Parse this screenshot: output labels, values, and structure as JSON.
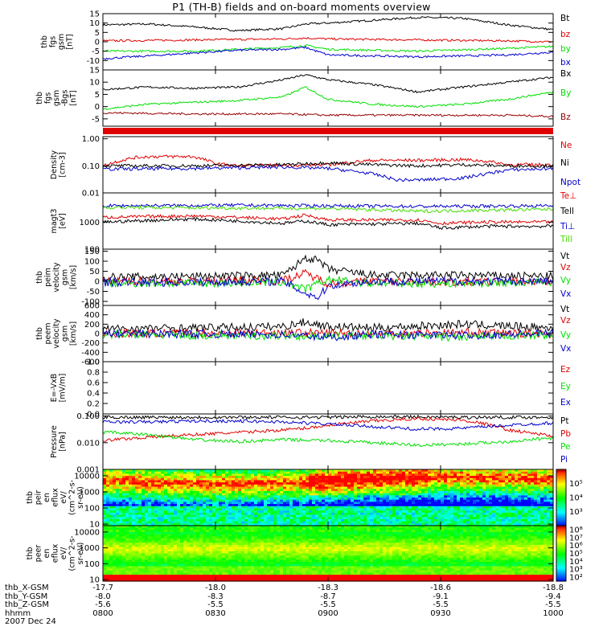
{
  "title": "P1 (TH-B) fields and on-board moments overview",
  "colors": {
    "black": "#000000",
    "red": "#e00000",
    "green": "#00e000",
    "blue": "#0000cc",
    "darkred": "#990000",
    "lime": "#44dd00"
  },
  "chart_data": [
    {
      "id": "p1",
      "type": "line",
      "ylabel": [
        "thb",
        "fgs",
        "gsm",
        "[nT]"
      ],
      "ylim": [
        -15,
        15
      ],
      "ylog": false,
      "yticks": [
        -10,
        -5,
        0,
        5,
        10,
        15
      ],
      "series": [
        {
          "name": "Bt",
          "color": "#000000",
          "x": [
            0,
            0.1,
            0.2,
            0.3,
            0.4,
            0.45,
            0.5,
            0.6,
            0.7,
            0.8,
            0.9,
            1
          ],
          "y": [
            9,
            9.5,
            8,
            6,
            7,
            9.5,
            10,
            11.5,
            13,
            12.5,
            9,
            6.5
          ]
        },
        {
          "name": "bz",
          "color": "#e00000",
          "x": [
            0,
            0.2,
            0.4,
            0.45,
            0.5,
            0.7,
            0.9,
            1
          ],
          "y": [
            0.5,
            1,
            1.5,
            2,
            1.5,
            1,
            0.5,
            0
          ]
        },
        {
          "name": "by",
          "color": "#00e000",
          "x": [
            0,
            0.2,
            0.4,
            0.45,
            0.5,
            0.7,
            0.9,
            1
          ],
          "y": [
            -5,
            -5,
            -3,
            -2,
            -4,
            -5,
            -3.5,
            -2.5
          ]
        },
        {
          "name": "bx",
          "color": "#0000cc",
          "x": [
            0,
            0.1,
            0.3,
            0.4,
            0.45,
            0.5,
            0.7,
            0.9,
            1
          ],
          "y": [
            -9,
            -7.5,
            -4.5,
            -4,
            -3,
            -7,
            -8,
            -7,
            -5.5
          ]
        }
      ]
    },
    {
      "id": "p2",
      "type": "line",
      "ylabel": [
        "thb",
        "fgs",
        "gsm",
        "-Bgs",
        "[nT]"
      ],
      "ylim": [
        -8,
        15
      ],
      "ylog": false,
      "yticks": [
        -5,
        0,
        5,
        10,
        15
      ],
      "series": [
        {
          "name": "Bx",
          "color": "#000000",
          "x": [
            0,
            0.1,
            0.2,
            0.3,
            0.4,
            0.45,
            0.5,
            0.6,
            0.7,
            0.8,
            0.9,
            1
          ],
          "y": [
            7,
            8,
            7.5,
            8,
            11,
            13,
            11,
            9,
            6,
            8,
            10,
            12
          ]
        },
        {
          "name": "By",
          "color": "#00e000",
          "x": [
            0,
            0.1,
            0.3,
            0.4,
            0.45,
            0.5,
            0.6,
            0.7,
            0.8,
            0.9,
            1
          ],
          "y": [
            -1,
            1,
            2.5,
            4,
            8,
            3,
            1,
            0,
            1,
            3,
            6
          ]
        },
        {
          "name": "Bz",
          "color": "#990000",
          "x": [
            0,
            0.2,
            0.4,
            0.5,
            0.7,
            0.9,
            1
          ],
          "y": [
            -2.5,
            -3,
            -3,
            -3.5,
            -3.5,
            -3.5,
            -4
          ]
        }
      ]
    },
    {
      "id": "p3",
      "type": "line",
      "ylabel": [
        "Density",
        "[cm-3]"
      ],
      "ylim": [
        0.01,
        1.2
      ],
      "ylog": true,
      "yticks": [
        0.01,
        0.1,
        1
      ],
      "yticklabels": [
        "0.01",
        "0.10",
        "1.00"
      ],
      "series": [
        {
          "name": "Ne",
          "color": "#e00000",
          "x": [
            0,
            0.07,
            0.1,
            0.2,
            0.25,
            0.3,
            0.5,
            0.6,
            0.7,
            0.8,
            0.85,
            0.9,
            1
          ],
          "y": [
            0.1,
            0.2,
            0.22,
            0.22,
            0.12,
            0.1,
            0.11,
            0.16,
            0.16,
            0.17,
            0.15,
            0.11,
            0.11
          ]
        },
        {
          "name": "Ni",
          "color": "#000000",
          "x": [
            0,
            0.2,
            0.4,
            0.5,
            0.6,
            0.7,
            0.8,
            0.9,
            1
          ],
          "y": [
            0.1,
            0.1,
            0.11,
            0.13,
            0.11,
            0.1,
            0.11,
            0.1,
            0.1
          ]
        },
        {
          "name": "Npot",
          "color": "#0000cc",
          "x": [
            0,
            0.2,
            0.4,
            0.5,
            0.6,
            0.65,
            0.7,
            0.8,
            0.85,
            0.9,
            1
          ],
          "y": [
            0.075,
            0.08,
            0.09,
            0.08,
            0.05,
            0.03,
            0.03,
            0.035,
            0.05,
            0.07,
            0.08
          ]
        }
      ]
    },
    {
      "id": "p4",
      "type": "line",
      "ylabel": [
        "magt3",
        "[eV]"
      ],
      "ylim": [
        100,
        12000
      ],
      "ylog": true,
      "yticks": [
        100,
        1000
      ],
      "yticklabels": [
        "100",
        "1000"
      ],
      "series": [
        {
          "name": "Te⊥",
          "color": "#e00000",
          "x": [
            0,
            0.2,
            0.4,
            0.45,
            0.5,
            0.7,
            0.75,
            0.85,
            1
          ],
          "y": [
            1500,
            1700,
            1300,
            1800,
            1200,
            1200,
            900,
            1000,
            1000
          ]
        },
        {
          "name": "Tell",
          "color": "#000000",
          "x": [
            0,
            0.2,
            0.4,
            0.45,
            0.5,
            0.7,
            0.75,
            0.85,
            1
          ],
          "y": [
            1000,
            1300,
            900,
            1100,
            800,
            900,
            600,
            700,
            700
          ]
        },
        {
          "name": "Ti⊥",
          "color": "#0000cc",
          "x": [
            0,
            0.3,
            0.5,
            0.7,
            1
          ],
          "y": [
            4000,
            4200,
            4000,
            3800,
            4000
          ]
        },
        {
          "name": "Till",
          "color": "#44dd00",
          "x": [
            0,
            0.3,
            0.5,
            0.7,
            1
          ],
          "y": [
            3500,
            3300,
            3200,
            2500,
            3000
          ]
        }
      ]
    },
    {
      "id": "p5",
      "type": "line",
      "ylabel": [
        "thb",
        "peim",
        "velocity",
        "gsm",
        "[km/s]"
      ],
      "ylim": [
        -120,
        160
      ],
      "ylog": false,
      "yticks": [
        -100,
        -50,
        0,
        50,
        100,
        150
      ],
      "series": [
        {
          "name": "Vt",
          "color": "#000000",
          "x": [
            0,
            0.2,
            0.4,
            0.43,
            0.45,
            0.48,
            0.5,
            0.6,
            0.8,
            1
          ],
          "y": [
            20,
            25,
            30,
            80,
            120,
            100,
            60,
            30,
            30,
            25
          ]
        },
        {
          "name": "Vz",
          "color": "#e00000",
          "x": [
            0,
            0.2,
            0.4,
            0.45,
            0.5,
            0.6,
            0.8,
            1
          ],
          "y": [
            0,
            0,
            5,
            40,
            -10,
            0,
            -5,
            0
          ]
        },
        {
          "name": "Vy",
          "color": "#00e000",
          "x": [
            0,
            0.2,
            0.4,
            0.45,
            0.5,
            0.6,
            0.8,
            1
          ],
          "y": [
            -10,
            -10,
            -5,
            -40,
            10,
            -10,
            -10,
            -5
          ]
        },
        {
          "name": "Vx",
          "color": "#0000cc",
          "x": [
            0,
            0.2,
            0.4,
            0.45,
            0.48,
            0.5,
            0.6,
            0.8,
            1
          ],
          "y": [
            -5,
            -5,
            0,
            -60,
            -80,
            -20,
            0,
            0,
            0
          ]
        }
      ]
    },
    {
      "id": "p6",
      "type": "line",
      "ylabel": [
        "thb",
        "peem",
        "velocity",
        "gsm",
        "[km/s]"
      ],
      "ylim": [
        -600,
        600
      ],
      "ylog": false,
      "yticks": [
        -600,
        -400,
        -200,
        0,
        200,
        400,
        600
      ],
      "series": [
        {
          "name": "Vt",
          "color": "#000000",
          "x": [
            0,
            0.2,
            0.4,
            0.45,
            0.5,
            0.6,
            0.8,
            0.85,
            1
          ],
          "y": [
            100,
            120,
            150,
            250,
            150,
            120,
            200,
            180,
            120
          ]
        },
        {
          "name": "Vz",
          "color": "#e00000",
          "x": [
            0,
            0.2,
            0.4,
            0.5,
            0.6,
            0.8,
            1
          ],
          "y": [
            0,
            10,
            20,
            10,
            0,
            20,
            0
          ]
        },
        {
          "name": "Vy",
          "color": "#00e000",
          "x": [
            0,
            0.2,
            0.4,
            0.5,
            0.6,
            0.8,
            1
          ],
          "y": [
            -20,
            -40,
            -50,
            -60,
            -40,
            -80,
            -20
          ]
        },
        {
          "name": "Vx",
          "color": "#0000cc",
          "x": [
            0,
            0.2,
            0.4,
            0.5,
            0.6,
            0.8,
            1
          ],
          "y": [
            0,
            -10,
            -20,
            -80,
            -20,
            -40,
            0
          ]
        }
      ]
    },
    {
      "id": "p7",
      "type": "line",
      "ylabel": [
        "E=-VxB",
        "[mV/m]"
      ],
      "ylim": [
        0,
        1
      ],
      "ylog": false,
      "yticks": [
        0,
        0.2,
        0.4,
        0.6,
        0.8,
        1
      ],
      "yticklabels": [
        "0.0",
        "0.2",
        "0.4",
        "0.6",
        "0.8",
        "1.0"
      ],
      "series": [
        {
          "name": "Ez",
          "color": "#e00000",
          "x": [],
          "y": []
        },
        {
          "name": "Ey",
          "color": "#00e000",
          "x": [],
          "y": []
        },
        {
          "name": "Ex",
          "color": "#0000cc",
          "x": [],
          "y": []
        }
      ]
    },
    {
      "id": "p8",
      "type": "line",
      "ylabel": [
        "Pressure",
        "[nPa]"
      ],
      "ylim": [
        0.001,
        0.12
      ],
      "ylog": true,
      "yticks": [
        0.001,
        0.01,
        0.1
      ],
      "yticklabels": [
        "0.001",
        "0.010",
        "0.100"
      ],
      "series": [
        {
          "name": "Pt",
          "color": "#000000",
          "x": [
            0,
            0.2,
            0.4,
            0.5,
            0.6,
            0.8,
            1
          ],
          "y": [
            0.09,
            0.09,
            0.09,
            0.09,
            0.095,
            0.09,
            0.09
          ]
        },
        {
          "name": "Pb",
          "color": "#e00000",
          "x": [
            0,
            0.1,
            0.2,
            0.3,
            0.4,
            0.45,
            0.5,
            0.6,
            0.7,
            0.8,
            0.9,
            1
          ],
          "y": [
            0.012,
            0.016,
            0.02,
            0.024,
            0.03,
            0.035,
            0.045,
            0.065,
            0.08,
            0.07,
            0.03,
            0.017
          ]
        },
        {
          "name": "Pe",
          "color": "#00e000",
          "x": [
            0,
            0.1,
            0.2,
            0.3,
            0.4,
            0.5,
            0.6,
            0.7,
            0.8,
            0.9,
            1
          ],
          "y": [
            0.025,
            0.02,
            0.013,
            0.011,
            0.013,
            0.012,
            0.01,
            0.008,
            0.009,
            0.011,
            0.015
          ]
        },
        {
          "name": "Pi",
          "color": "#0000cc",
          "x": [
            0,
            0.1,
            0.2,
            0.3,
            0.4,
            0.5,
            0.6,
            0.7,
            0.8,
            0.9,
            1
          ],
          "y": [
            0.06,
            0.06,
            0.065,
            0.065,
            0.06,
            0.05,
            0.04,
            0.032,
            0.035,
            0.045,
            0.055
          ]
        }
      ]
    },
    {
      "id": "p9",
      "type": "heatmap",
      "ylabel": [
        "thb",
        "peir",
        "en",
        "eflux",
        "eV/",
        "(cm^2-s-",
        "sr-eV)"
      ],
      "ylim": [
        8,
        25000
      ],
      "ylog": true,
      "yticks": [
        10,
        100,
        1000,
        10000
      ],
      "yticklabels": [
        "10",
        "100",
        "1000",
        "10000"
      ],
      "colorbar": {
        "ticks": [
          "10^3",
          "10^4",
          "10^5"
        ]
      }
    },
    {
      "id": "p10",
      "type": "heatmap",
      "ylabel": [
        "thb",
        "peer",
        "en",
        "eflux",
        "eV/",
        "(cm^2-s-",
        "sr-eV)"
      ],
      "ylim": [
        8,
        25000
      ],
      "ylog": true,
      "yticks": [
        10,
        100,
        1000,
        10000
      ],
      "yticklabels": [
        "10",
        "100",
        "1000",
        "10000"
      ],
      "colorbar": {
        "ticks": [
          "10^2",
          "10^3",
          "10^4",
          "10^5",
          "10^6",
          "10^7",
          "10^8"
        ]
      }
    }
  ],
  "footer": {
    "rows": [
      {
        "label": "thb_X-GSM",
        "values": [
          "-17.7",
          "-18.0",
          "-18.3",
          "-18.6",
          "-18.8"
        ]
      },
      {
        "label": "thb_Y-GSM",
        "values": [
          "-8.0",
          "-8.3",
          "-8.7",
          "-9.1",
          "-9.4"
        ]
      },
      {
        "label": "thb_Z-GSM",
        "values": [
          "-5.6",
          "-5.5",
          "-5.5",
          "-5.5",
          "-5.5"
        ]
      },
      {
        "label": "hhmm",
        "values": [
          "0800",
          "0830",
          "0900",
          "0930",
          "1000"
        ]
      }
    ],
    "date": "2007 Dec 24"
  }
}
